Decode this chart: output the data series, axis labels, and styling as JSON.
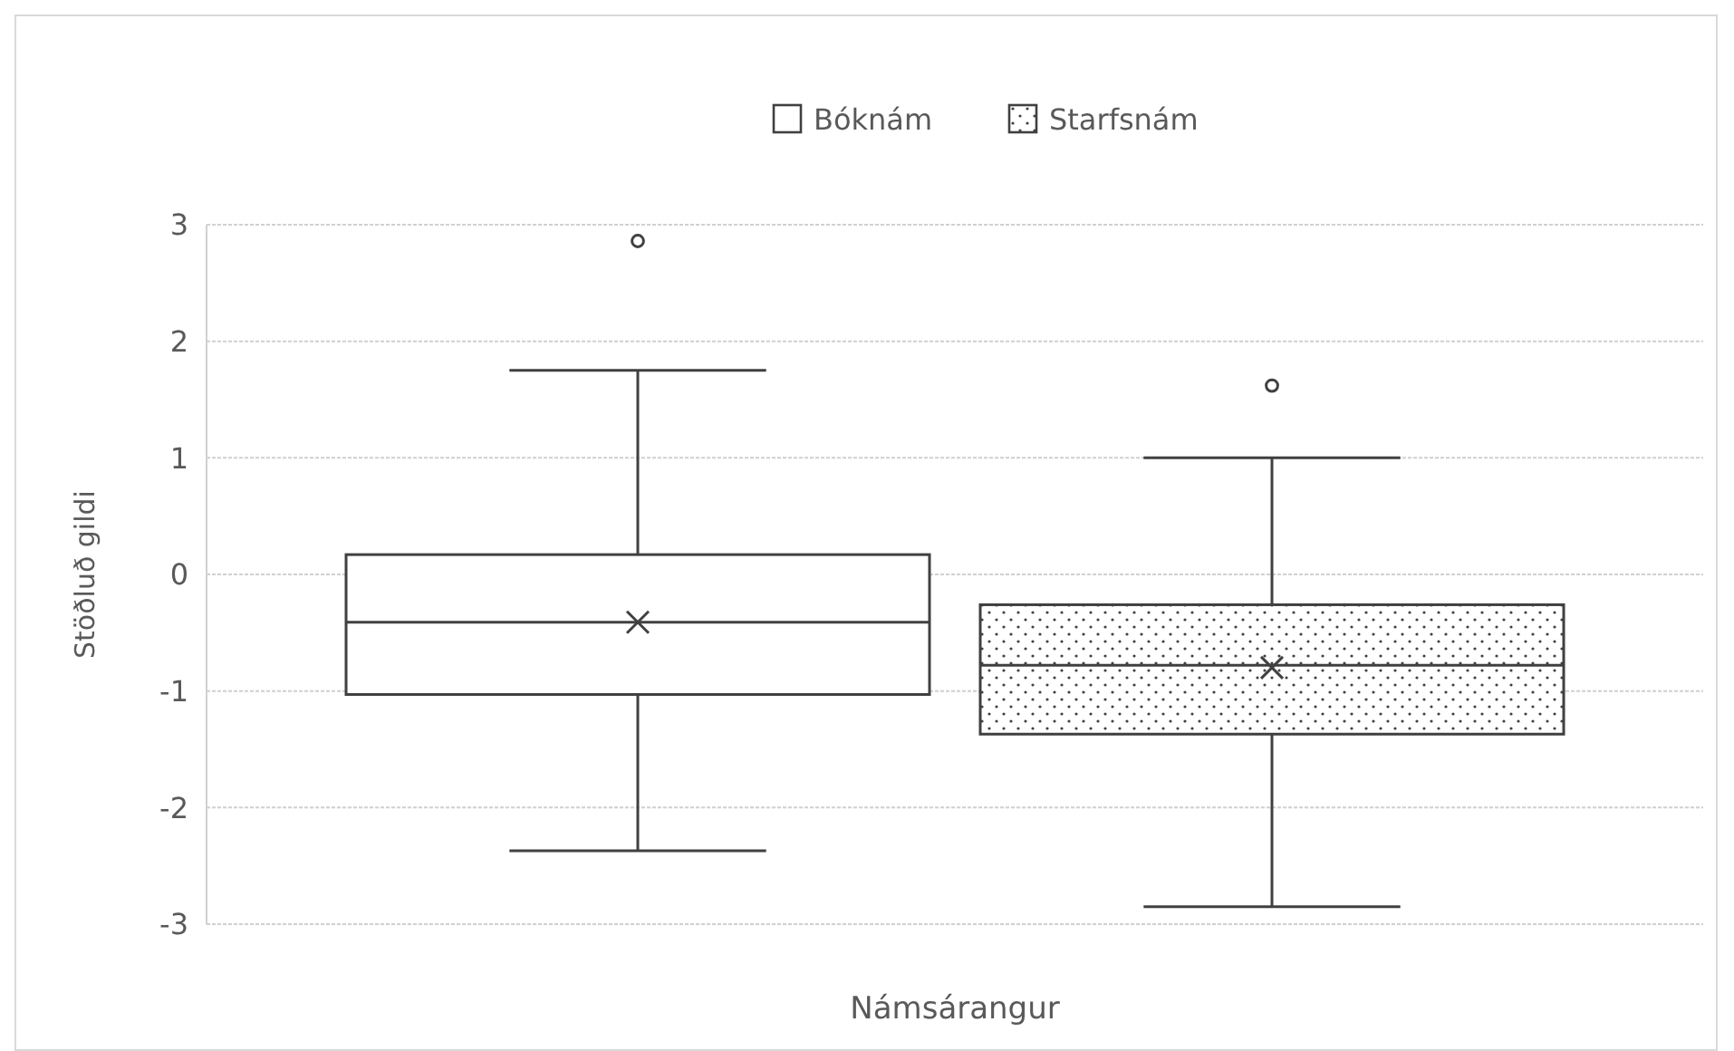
{
  "chart_data": {
    "type": "box",
    "xlabel": "Námsárangur",
    "ylabel": "Stöðluð gildi",
    "categories": [
      null
    ],
    "ylim": [
      -3,
      3
    ],
    "yticks": [
      -3,
      -2,
      -1,
      0,
      1,
      2,
      3
    ],
    "grid": "y",
    "legend": "top",
    "series": [
      {
        "name": "Bóknám",
        "color": "#404040",
        "boxes": [
          {
            "low": -2.37,
            "q1": -1.03,
            "median": -0.41,
            "q3": 0.17,
            "high": 1.75,
            "mean": -0.41,
            "outliers": [
              2.86
            ]
          }
        ]
      },
      {
        "name": "Starfsnám",
        "color": "#404040",
        "boxes": [
          {
            "low": -2.85,
            "q1": -1.37,
            "median": -0.78,
            "q3": -0.26,
            "high": 1.0,
            "mean": -0.8,
            "outliers": [
              1.62
            ]
          }
        ]
      }
    ]
  }
}
